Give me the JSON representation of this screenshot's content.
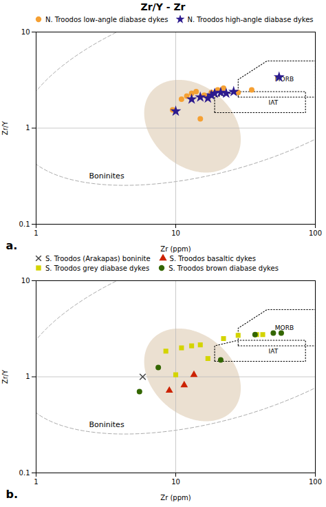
{
  "chart_data": [
    {
      "type": "scatter",
      "title": "Zr/Y - Zr",
      "xlabel": "Zr (ppm)",
      "ylabel": "Zr/Y",
      "log": true,
      "xlim": [
        1,
        100
      ],
      "ylim": [
        0.1,
        10
      ],
      "xticks": [
        1,
        10,
        100
      ],
      "yticks": [
        0.1,
        1,
        10
      ],
      "panel_label": "a.",
      "series": [
        {
          "name": "N. Troodos low-angle diabase dykes",
          "color": "#f5a033",
          "marker": "circle",
          "x": [
            9.5,
            11,
            12,
            13,
            14,
            15,
            16,
            18,
            20,
            22,
            28,
            35
          ],
          "values": [
            1.55,
            2.0,
            2.15,
            2.3,
            2.4,
            1.25,
            2.2,
            2.35,
            2.5,
            2.6,
            2.35,
            2.5
          ]
        },
        {
          "name": "N. Troodos high-angle diabase dykes",
          "color": "#2d1b8e",
          "marker": "star",
          "x": [
            10,
            13,
            15,
            17,
            18,
            19,
            21,
            23,
            26,
            55
          ],
          "values": [
            1.5,
            2.0,
            2.1,
            2.05,
            2.2,
            2.3,
            2.35,
            2.3,
            2.4,
            3.4
          ]
        }
      ],
      "annotations": [
        {
          "text": "Boninites",
          "x": 3.2,
          "y": 0.32
        }
      ],
      "fields": [
        {
          "label": "MORB",
          "label_x": 60,
          "label_y": 3.2,
          "x": [
            28,
            100,
            100,
            45,
            28
          ],
          "y": [
            2.1,
            2.1,
            5.0,
            5.0,
            3.2
          ],
          "color": "#000000",
          "line_style": "dotted"
        },
        {
          "label": "IAT",
          "label_x": 50,
          "label_y": 1.85,
          "x": [
            19,
            85,
            85,
            28,
            19
          ],
          "y": [
            1.45,
            1.45,
            2.4,
            2.4,
            2.1
          ],
          "color": "#000000",
          "line_style": "dotted"
        }
      ],
      "ellipses": [
        {
          "cx_log": 1.3,
          "cy_log": 0.45,
          "rx_log": 1.55,
          "ry_log": 0.85,
          "angle_deg": 28,
          "color": "#aaaaaa",
          "line_style": "dashed"
        },
        {
          "cx_log": 1.12,
          "cy_log": 0.02,
          "rx_log": 0.32,
          "ry_log": 0.5,
          "angle_deg": 20,
          "fill_color": "#e0d0b8"
        }
      ],
      "reference_lines": [
        {
          "axis": "y",
          "value": 1.0,
          "color": "#bbbbbb"
        },
        {
          "axis": "x",
          "value": 10,
          "color": "#bbbbbb"
        }
      ]
    },
    {
      "type": "scatter",
      "xlabel": "Zr (ppm)",
      "ylabel": "Zr/Y",
      "log": true,
      "xlim": [
        1,
        100
      ],
      "ylim": [
        0.1,
        10
      ],
      "xticks": [
        1,
        10,
        100
      ],
      "yticks": [
        0.1,
        1,
        10
      ],
      "panel_label": "b.",
      "series": [
        {
          "name": "S. Troodos (Arakapas) boninite",
          "color": "#444444",
          "marker": "x",
          "x": [
            5.8
          ],
          "values": [
            1.0
          ]
        },
        {
          "name": "S. Troodos basaltic dykes",
          "color": "#cc2200",
          "marker": "triangle",
          "x": [
            9.0,
            11.5,
            13.5
          ],
          "values": [
            0.72,
            0.82,
            1.05
          ]
        },
        {
          "name": "S. Troodos grey diabase dykes",
          "color": "#d4d400",
          "marker": "square",
          "x": [
            8.5,
            10,
            11,
            13,
            15,
            17,
            22,
            28,
            38,
            42
          ],
          "values": [
            1.85,
            1.05,
            2.0,
            2.1,
            2.15,
            1.55,
            2.5,
            2.7,
            2.75,
            2.75
          ]
        },
        {
          "name": "S. Troodos brown diabase dykes",
          "color": "#336600",
          "marker": "circle",
          "x": [
            5.5,
            7.5,
            21,
            37,
            50,
            57
          ],
          "values": [
            0.7,
            1.25,
            1.5,
            2.75,
            2.85,
            2.85
          ]
        }
      ],
      "annotations": [
        {
          "text": "Boninites",
          "x": 3.2,
          "y": 0.32
        }
      ],
      "fields": [
        {
          "label": "MORB",
          "label_x": 60,
          "label_y": 3.2,
          "x": [
            28,
            100,
            100,
            45,
            28
          ],
          "y": [
            2.1,
            2.1,
            5.0,
            5.0,
            3.2
          ],
          "color": "#000000",
          "line_style": "dotted"
        },
        {
          "label": "IAT",
          "label_x": 50,
          "label_y": 1.85,
          "x": [
            19,
            85,
            85,
            28,
            19
          ],
          "y": [
            1.45,
            1.45,
            2.4,
            2.4,
            2.1
          ],
          "color": "#000000",
          "line_style": "dotted"
        }
      ],
      "ellipses": [
        {
          "cx_log": 1.3,
          "cy_log": 0.45,
          "rx_log": 1.55,
          "ry_log": 0.85,
          "angle_deg": 28,
          "color": "#aaaaaa",
          "line_style": "dashed"
        },
        {
          "cx_log": 1.12,
          "cy_log": 0.02,
          "rx_log": 0.32,
          "ry_log": 0.5,
          "angle_deg": 20,
          "fill_color": "#e0d0b8"
        }
      ],
      "reference_lines": [
        {
          "axis": "y",
          "value": 1.0,
          "color": "#bbbbbb"
        },
        {
          "axis": "x",
          "value": 10,
          "color": "#bbbbbb"
        }
      ]
    }
  ]
}
